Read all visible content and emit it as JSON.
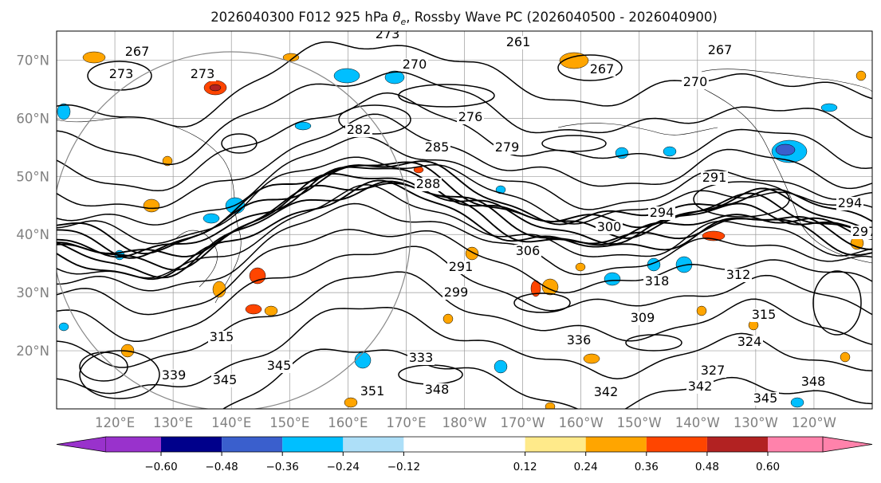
{
  "title": {
    "prefix": "2026040300 F012 925 hPa ",
    "theta": "θ",
    "theta_sub": "e",
    "suffix": ", Rossby Wave PC (2026040500 - 2026040900)"
  },
  "map": {
    "lat_labels": [
      "70°N",
      "60°N",
      "50°N",
      "40°N",
      "30°N",
      "20°N"
    ],
    "lat_values": [
      70,
      60,
      50,
      40,
      30,
      20
    ],
    "lon_labels": [
      "120°E",
      "130°E",
      "140°E",
      "150°E",
      "160°E",
      "170°E",
      "180°W",
      "170°W",
      "160°W",
      "150°W",
      "140°W",
      "130°W",
      "120°W"
    ],
    "lon_values": [
      120,
      130,
      140,
      150,
      160,
      170,
      180,
      190,
      200,
      210,
      220,
      230,
      240
    ],
    "lat_range": [
      10,
      75
    ],
    "lon_range": [
      110,
      250
    ],
    "contour_labels": [
      "267",
      "273",
      "273",
      "273",
      "270",
      "267",
      "261",
      "267",
      "270",
      "276",
      "285",
      "282",
      "279",
      "291",
      "288",
      "294",
      "300",
      "291",
      "306",
      "299",
      "318",
      "312",
      "309",
      "315",
      "315",
      "333",
      "336",
      "324",
      "327",
      "342",
      "345",
      "348",
      "351",
      "342",
      "345",
      "348",
      "339",
      "345",
      "297",
      "294"
    ]
  },
  "colorbar": {
    "tick_labels": [
      "−0.60",
      "−0.48",
      "−0.36",
      "−0.24",
      "−0.12",
      "0.12",
      "0.24",
      "0.36",
      "0.48",
      "0.60"
    ],
    "tick_values": [
      -0.6,
      -0.48,
      -0.36,
      -0.24,
      -0.12,
      0.12,
      0.24,
      0.36,
      0.48,
      0.6
    ],
    "colors": [
      "#9932CC",
      "#00008B",
      "#3A5FCD",
      "#00BFFF",
      "#ADDFF8",
      "#FFFFFF",
      "#FFEA8A",
      "#FFA500",
      "#FF4500",
      "#B22222",
      "#FF82AB"
    ]
  }
}
